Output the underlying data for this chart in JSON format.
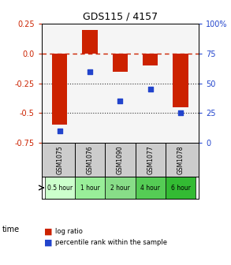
{
  "title": "GDS115 / 4157",
  "samples": [
    "GSM1075",
    "GSM1076",
    "GSM1090",
    "GSM1077",
    "GSM1078"
  ],
  "time_labels": [
    "0.5 hour",
    "1 hour",
    "2 hour",
    "4 hour",
    "6 hour"
  ],
  "log_ratio": [
    -0.6,
    0.2,
    -0.15,
    -0.1,
    -0.45
  ],
  "percentile": [
    10,
    60,
    35,
    45,
    25
  ],
  "bar_color": "#cc2200",
  "dot_color": "#2244cc",
  "ylim_left": [
    -0.75,
    0.25
  ],
  "ylim_right": [
    0,
    100
  ],
  "yticks_left": [
    0.25,
    0.0,
    -0.25,
    -0.5,
    -0.75
  ],
  "yticks_right": [
    100,
    75,
    50,
    25,
    0
  ],
  "hline_zero_color": "#cc2200",
  "hline_dotted_color": "#333333",
  "time_colors": [
    "#ccffcc",
    "#99ee99",
    "#88dd88",
    "#55cc55",
    "#33bb33"
  ],
  "sample_row_color": "#cccccc",
  "background_color": "#ffffff",
  "plot_bg_color": "#f5f5f5"
}
